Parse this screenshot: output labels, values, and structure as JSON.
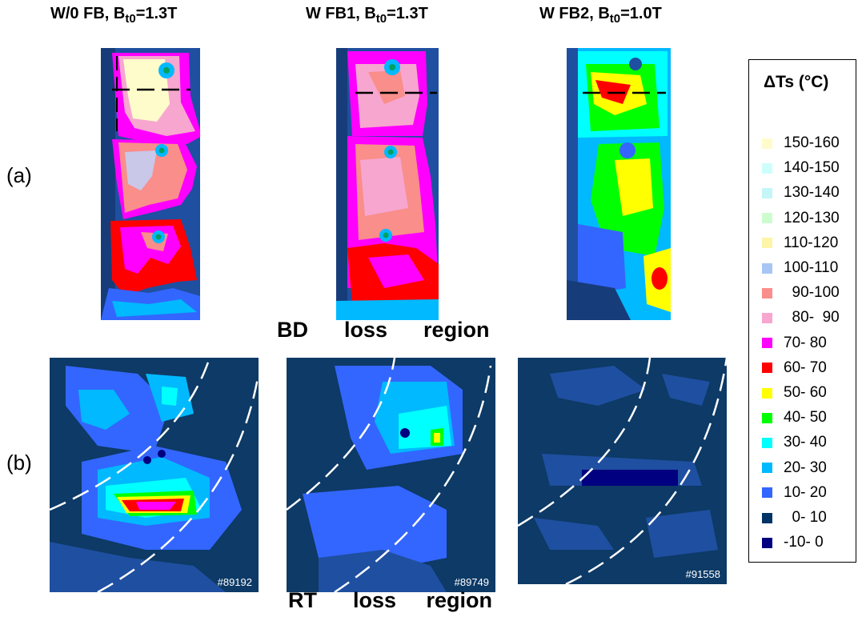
{
  "titles": {
    "wo_fb": {
      "main": "W/0 FB, B",
      "sub": "t0",
      "tail": "=1.3T"
    },
    "w_fb1": {
      "main": "W FB1, B",
      "sub": "t0",
      "tail": "=1.3T"
    },
    "w_fb2": {
      "main": "W FB2, B",
      "sub": "t0",
      "tail": "=1.0T"
    }
  },
  "row_labels": {
    "a": "(a)",
    "b": "(b)"
  },
  "region_labels": {
    "bd": "BD      loss      region",
    "rt": "RT      loss     region"
  },
  "shot_numbers": [
    "#89192",
    "#89749",
    "#91558"
  ],
  "legend": {
    "title": "ΔTs (°C)",
    "items": [
      {
        "label": "150-160",
        "color": "#fffccc"
      },
      {
        "label": "140-150",
        "color": "#ccfffc"
      },
      {
        "label": "130-140",
        "color": "#c4f6f8"
      },
      {
        "label": "120-130",
        "color": "#cdfccf"
      },
      {
        "label": "110-120",
        "color": "#fdf5a7"
      },
      {
        "label": "100-110",
        "color": "#a8c6f3"
      },
      {
        "label": "  90-100",
        "color": "#f98e8a"
      },
      {
        "label": "  80-  90",
        "color": "#f7a6cf"
      },
      {
        "label": "70- 80",
        "color": "#ff00ff"
      },
      {
        "label": "60- 70",
        "color": "#ff0000"
      },
      {
        "label": "50- 60",
        "color": "#ffff00"
      },
      {
        "label": "40- 50",
        "color": "#00ff00"
      },
      {
        "label": "30- 40",
        "color": "#00ffff"
      },
      {
        "label": "20- 30",
        "color": "#00b9ff"
      },
      {
        "label": "10- 20",
        "color": "#3366ff"
      },
      {
        "label": "  0- 10",
        "color": "#003366"
      },
      {
        "label": "-10- 0",
        "color": "#000080"
      }
    ]
  }
}
